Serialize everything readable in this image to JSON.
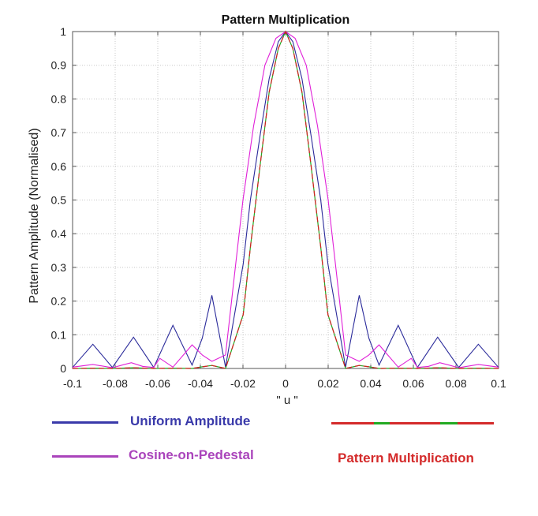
{
  "chart_data": {
    "type": "line",
    "title": "Pattern Multiplication",
    "xlabel": "\" u \"",
    "ylabel": "Pattern Amplitude (Normalised)",
    "xlim": [
      -0.1,
      0.1
    ],
    "ylim": [
      0,
      1
    ],
    "xticks": [
      "-0.1",
      "-0.08",
      "-0.06",
      "-0.04",
      "-0.02",
      "0",
      "0.02",
      "0.04",
      "0.06",
      "0.08",
      "0.1"
    ],
    "yticks": [
      "0",
      "0.1",
      "0.2",
      "0.3",
      "0.4",
      "0.5",
      "0.6",
      "0.7",
      "0.8",
      "0.9",
      "1"
    ],
    "grid": true,
    "series": [
      {
        "name": "Uniform Amplitude",
        "color": "#2a2a9a",
        "x": [
          -0.1,
          -0.0905,
          -0.0813,
          -0.0714,
          -0.0619,
          -0.0529,
          -0.0439,
          -0.0391,
          -0.0346,
          -0.0282,
          -0.0199,
          -0.0165,
          -0.012,
          -0.0077,
          -0.0034,
          0,
          0.0034,
          0.0077,
          0.012,
          0.0165,
          0.0199,
          0.0282,
          0.0346,
          0.0391,
          0.0439,
          0.0529,
          0.0619,
          0.0714,
          0.0813,
          0.0905,
          0.1
        ],
        "y": [
          0.003,
          0.072,
          0.003,
          0.093,
          0.003,
          0.128,
          0.01,
          0.09,
          0.217,
          0.004,
          0.31,
          0.5,
          0.69,
          0.86,
          0.97,
          1,
          0.97,
          0.86,
          0.69,
          0.5,
          0.31,
          0.004,
          0.217,
          0.09,
          0.01,
          0.128,
          0.003,
          0.093,
          0.003,
          0.072,
          0.003
        ]
      },
      {
        "name": "Cosine-on-Pedestal",
        "color": "#e020d8",
        "x": [
          -0.1,
          -0.0905,
          -0.0813,
          -0.0767,
          -0.0724,
          -0.067,
          -0.062,
          -0.059,
          -0.0529,
          -0.0439,
          -0.0391,
          -0.0346,
          -0.0282,
          -0.0236,
          -0.02,
          -0.015,
          -0.0097,
          -0.0045,
          0,
          0.0045,
          0.0097,
          0.015,
          0.02,
          0.0236,
          0.0282,
          0.0346,
          0.0391,
          0.0439,
          0.0529,
          0.059,
          0.062,
          0.067,
          0.0724,
          0.0767,
          0.0813,
          0.0905,
          0.1
        ],
        "y": [
          0.004,
          0.012,
          0.002,
          0.01,
          0.017,
          0.006,
          0.003,
          0.03,
          0.004,
          0.07,
          0.04,
          0.021,
          0.04,
          0.3,
          0.5,
          0.72,
          0.9,
          0.98,
          1,
          0.98,
          0.9,
          0.72,
          0.5,
          0.3,
          0.04,
          0.021,
          0.04,
          0.07,
          0.004,
          0.03,
          0.003,
          0.006,
          0.017,
          0.01,
          0.002,
          0.012,
          0.004
        ]
      },
      {
        "name": "Pattern Multiplication",
        "color": "#d42020",
        "color_alt": "#22aa22",
        "x": [
          -0.1,
          -0.0905,
          -0.0813,
          -0.0714,
          -0.0619,
          -0.0529,
          -0.0439,
          -0.0391,
          -0.0346,
          -0.0282,
          -0.0199,
          -0.0165,
          -0.012,
          -0.0077,
          -0.0034,
          0,
          0.0034,
          0.0077,
          0.012,
          0.0165,
          0.0199,
          0.0282,
          0.0346,
          0.0391,
          0.0439,
          0.0529,
          0.0619,
          0.0714,
          0.0813,
          0.0905,
          0.1
        ],
        "y": [
          0,
          0.001,
          0,
          0.002,
          0,
          0.001,
          0,
          0.005,
          0.009,
          0,
          0.16,
          0.36,
          0.6,
          0.82,
          0.95,
          1,
          0.95,
          0.82,
          0.6,
          0.36,
          0.16,
          0,
          0.009,
          0.005,
          0,
          0.001,
          0,
          0.002,
          0,
          0.001,
          0
        ]
      }
    ],
    "legend": [
      {
        "label": "Uniform Amplitude",
        "color": "#3a3aaa"
      },
      {
        "label": "Cosine-on-Pedestal",
        "color": "#aa44bb"
      },
      {
        "label": "Pattern Multiplication",
        "color": "#d42a2a"
      }
    ]
  }
}
